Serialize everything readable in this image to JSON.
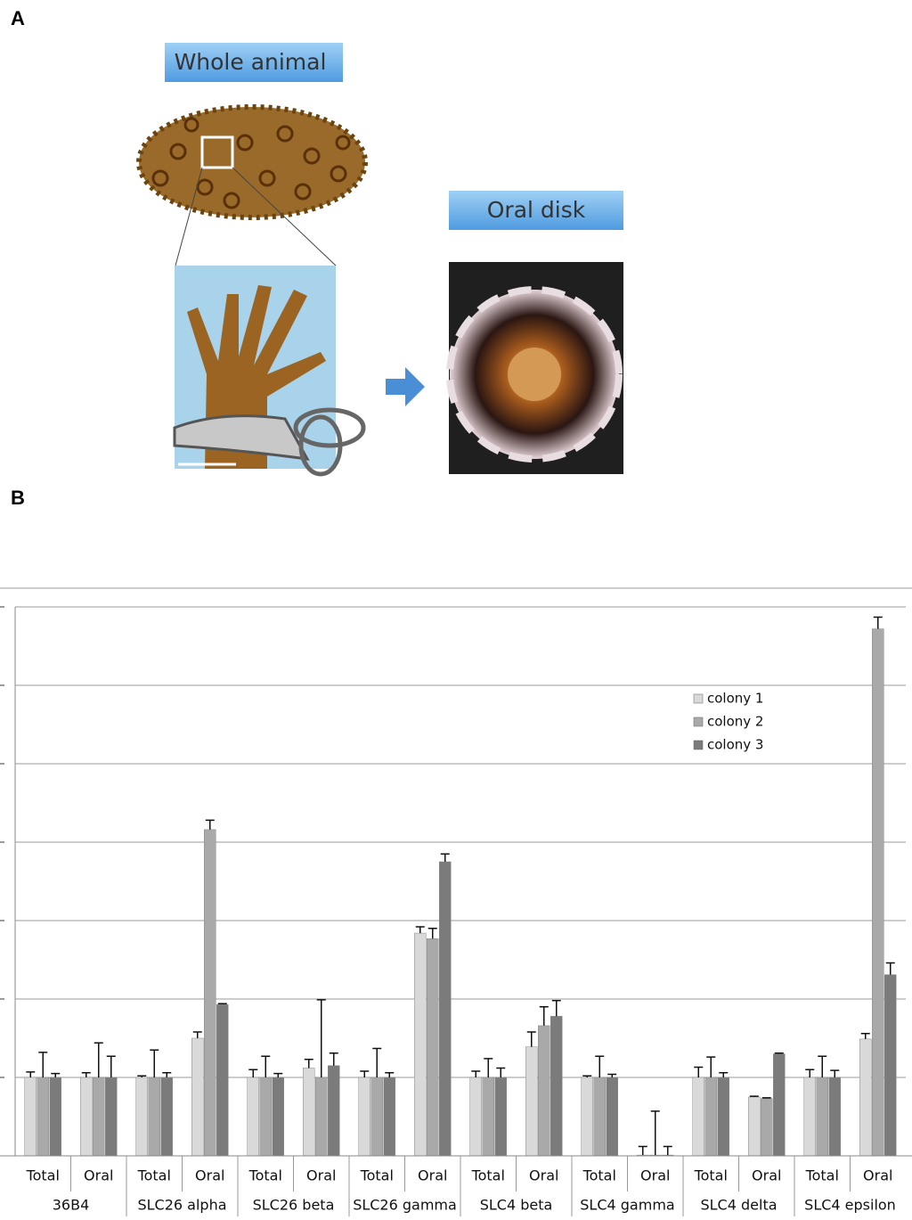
{
  "panel_a": {
    "label": "A",
    "whole_animal": "Whole animal",
    "oral_disk": "Oral disk"
  },
  "panel_b": {
    "label": "B"
  },
  "chart_data": {
    "type": "bar",
    "groups": [
      "36B4",
      "SLC26 alpha",
      "SLC26 beta",
      "SLC26 gamma",
      "SLC4 beta",
      "SLC4 gamma",
      "SLC4 delta",
      "SLC4 epsilon"
    ],
    "categories": [
      "Total",
      "Oral",
      "Total",
      "Oral",
      "Total",
      "Oral",
      "Total",
      "Oral",
      "Total",
      "Oral",
      "Total",
      "Oral",
      "Total",
      "Oral",
      "Total",
      "Oral"
    ],
    "series": [
      {
        "name": "colony 1",
        "color": "#d9d9d9",
        "values": [
          1,
          1,
          1,
          1.5,
          1,
          1.12,
          1,
          2.84,
          1,
          1.39,
          1,
          0.01,
          1,
          0.75,
          1,
          1.49
        ],
        "errors": [
          0.07,
          0.06,
          0.02,
          0.08,
          0.1,
          0.11,
          0.08,
          0.08,
          0.08,
          0.19,
          0.02,
          0.11,
          0.13,
          0.01,
          0.1,
          0.07
        ]
      },
      {
        "name": "colony  2",
        "color": "#a9a9a9",
        "values": [
          1,
          1,
          1,
          4.16,
          1,
          1,
          1,
          2.77,
          1,
          1.66,
          1,
          0.01,
          1,
          0.73,
          1,
          6.72
        ],
        "errors": [
          0.32,
          0.44,
          0.35,
          0.12,
          0.27,
          0.99,
          0.37,
          0.13,
          0.24,
          0.24,
          0.27,
          0.56,
          0.26,
          0.01,
          0.27,
          0.15
        ]
      },
      {
        "name": "colony  3",
        "color": "#7b7b7b",
        "values": [
          1,
          1,
          1,
          1.93,
          1,
          1.15,
          1,
          3.75,
          1,
          1.78,
          1,
          0.01,
          1,
          1.3,
          1,
          2.31
        ],
        "errors": [
          0.05,
          0.27,
          0.06,
          0.01,
          0.05,
          0.16,
          0.06,
          0.1,
          0.12,
          0.2,
          0.04,
          0.11,
          0.06,
          0.01,
          0.09,
          0.15
        ]
      }
    ],
    "ylim": [
      0,
      7
    ],
    "yticks": [
      0,
      1,
      2,
      3,
      4,
      5,
      6,
      7
    ],
    "grid": true
  }
}
